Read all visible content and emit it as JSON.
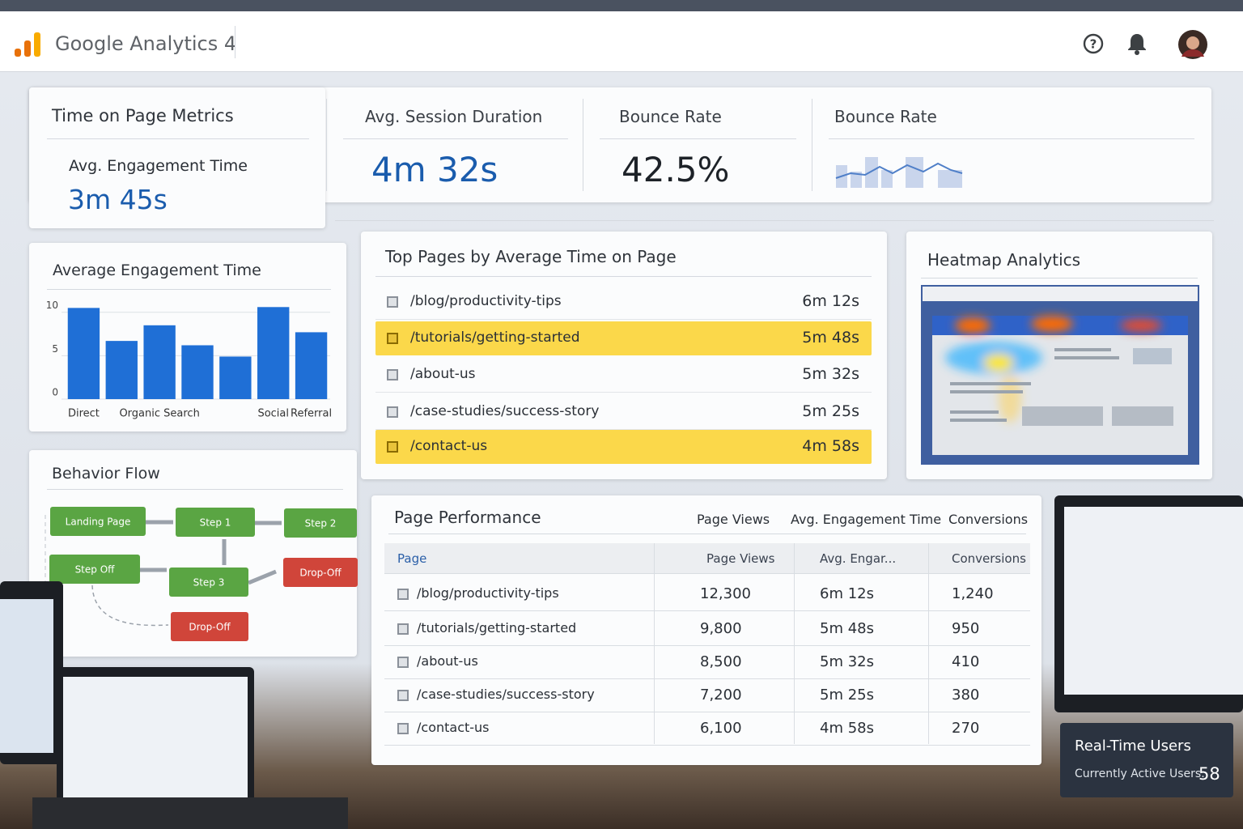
{
  "header": {
    "brand": "Google Analytics 4"
  },
  "metrics": {
    "title": "Time on Page Metrics",
    "cards": [
      {
        "label": "Avg. Engagement Time",
        "value": "3m 45s"
      },
      {
        "label": "Avg. Session Duration",
        "value": "4m 32s"
      },
      {
        "label": "Bounce Rate",
        "value": "42.5%"
      },
      {
        "label": "Bounce Rate"
      }
    ]
  },
  "chart_data": {
    "type": "bar",
    "title": "Average Engagement Time",
    "categories": [
      "Direct",
      null,
      "Organic Search",
      null,
      null,
      "Social",
      "Referral"
    ],
    "values": [
      10.5,
      6.7,
      8.5,
      6.2,
      4.9,
      10.6,
      7.7
    ],
    "color": "#1f6fd6",
    "ylim": [
      0,
      11
    ],
    "yticks": [
      0,
      5,
      10
    ],
    "grid": true
  },
  "behavior_flow": {
    "title": "Behavior Flow",
    "nodes": [
      {
        "label": "Landing Page",
        "kind": "step"
      },
      {
        "label": "Step 1",
        "kind": "step"
      },
      {
        "label": "Step 2",
        "kind": "step"
      },
      {
        "label": "Step Off",
        "kind": "step"
      },
      {
        "label": "Step 3",
        "kind": "step"
      },
      {
        "label": "Drop-Off",
        "kind": "drop"
      },
      {
        "label": "Drop-Off",
        "kind": "drop"
      }
    ]
  },
  "top_pages": {
    "title": "Top Pages by Average Time on Page",
    "rows": [
      {
        "page": "/blog/productivity-tips",
        "time": "6m 12s",
        "highlight": false
      },
      {
        "page": "/tutorials/getting-started",
        "time": "5m 48s",
        "highlight": true
      },
      {
        "page": "/about-us",
        "time": "5m 32s",
        "highlight": false
      },
      {
        "page": "/case-studies/success-story",
        "time": "5m 25s",
        "highlight": false
      },
      {
        "page": "/contact-us",
        "time": "4m 58s",
        "highlight": true
      }
    ]
  },
  "heatmap": {
    "title": "Heatmap Analytics"
  },
  "page_performance": {
    "title": "Page Performance",
    "summary_headers": [
      "Page Views",
      "Avg. Engagement Time",
      "Conversions"
    ],
    "columns": [
      "Page",
      "Page Views",
      "Avg. Engar...",
      "Conversions"
    ],
    "rows": [
      [
        "/blog/productivity-tips",
        "12,300",
        "6m 12s",
        "1,240"
      ],
      [
        "/tutorials/getting-started",
        "9,800",
        "5m 48s",
        "950"
      ],
      [
        "/about-us",
        "8,500",
        "5m 32s",
        "410"
      ],
      [
        "/case-studies/success-story",
        "7,200",
        "5m 25s",
        "380"
      ],
      [
        "/contact-us",
        "6,100",
        "4m 58s",
        "270"
      ]
    ]
  },
  "realtime": {
    "title": "Real-Time Users",
    "label": "Currently Active Users:",
    "value": "58"
  }
}
